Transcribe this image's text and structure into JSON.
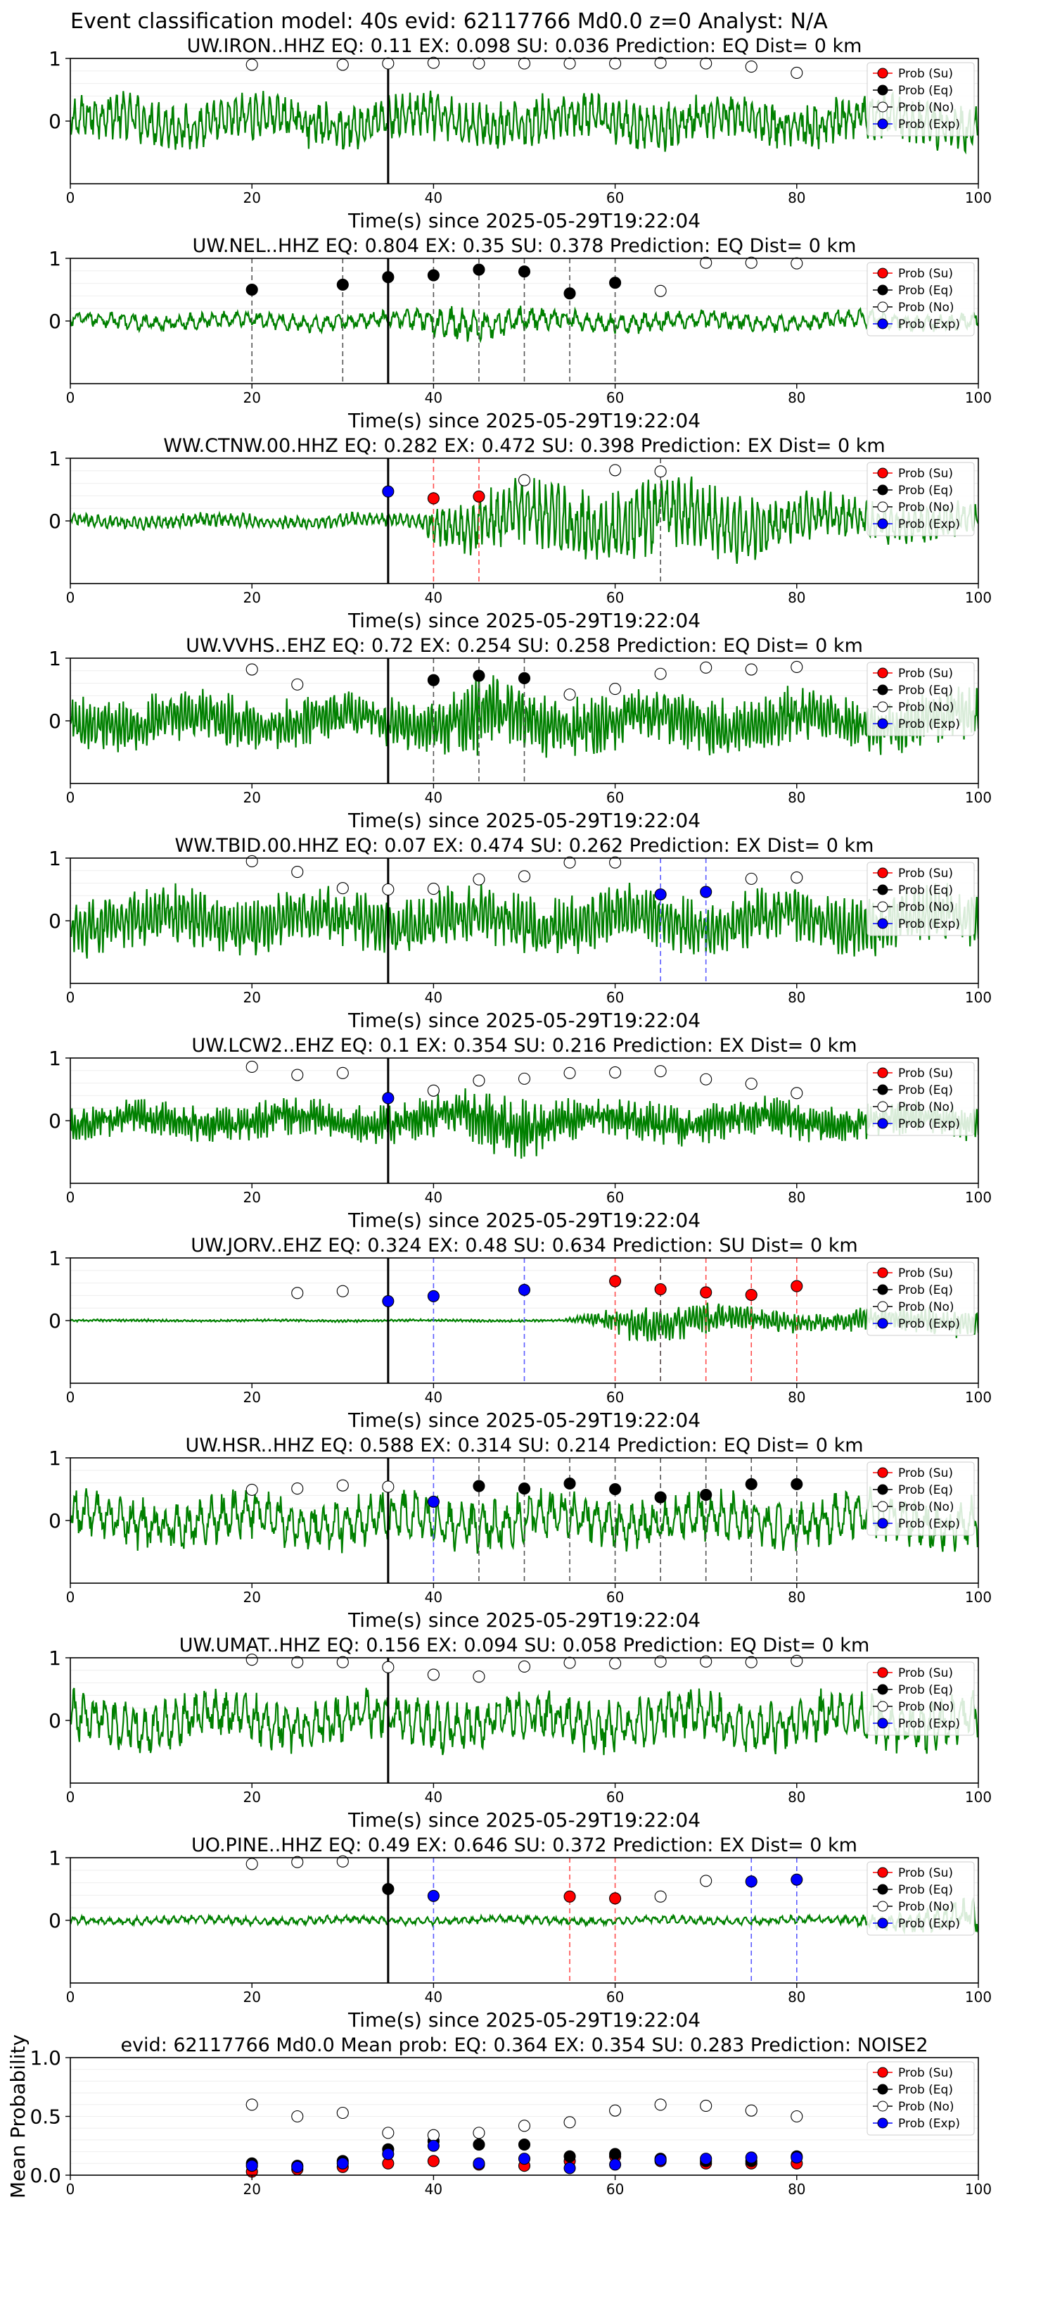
{
  "figure": {
    "suptitle": "Event classification model: 40s evid: 62117766 Md0.0 z=0 Analyst: N/A",
    "xlabel": "Time(s) since 2025-05-29T19:22:04",
    "colors": {
      "waveform": "#008000",
      "su": "#ff0000",
      "eq": "#000000",
      "no": "#ffffff",
      "exp": "#0000ff",
      "pick": "#000000"
    },
    "legend_labels": [
      "Prob (Su)",
      "Prob (Eq)",
      "Prob (No)",
      "Prob (Exp)"
    ],
    "x_ticks": [
      "0",
      "20",
      "40",
      "60",
      "80",
      "100"
    ],
    "y_ticks_station": [
      "1",
      "0"
    ],
    "y_ticks_mean": [
      "0.0",
      "0.5",
      "1.0"
    ],
    "mean_ylabel": "Mean Probability"
  },
  "chart_data": [
    {
      "type": "line",
      "title": "UW.IRON..HHZ   EQ: 0.11  EX: 0.098  SU: 0.036   Prediction: EQ    Dist= 0 km",
      "xlim": [
        0,
        100
      ],
      "ylim": [
        -1,
        1
      ],
      "pick": 35,
      "legend": "right",
      "wave": {
        "amp": 0.42,
        "freq": 1.3,
        "env": [
          [
            0,
            1
          ],
          [
            100,
            1
          ]
        ]
      },
      "su": [],
      "eq": [],
      "exp": [],
      "no": [
        [
          20,
          0.9
        ],
        [
          30,
          0.9
        ],
        [
          35,
          0.92
        ],
        [
          40,
          0.93
        ],
        [
          45,
          0.92
        ],
        [
          50,
          0.92
        ],
        [
          55,
          0.92
        ],
        [
          60,
          0.92
        ],
        [
          65,
          0.93
        ],
        [
          70,
          0.92
        ],
        [
          75,
          0.87
        ],
        [
          80,
          0.77
        ]
      ],
      "vlines": []
    },
    {
      "type": "line",
      "title": "UW.NEL..HHZ   EQ: 0.804  EX: 0.35  SU: 0.378   Prediction: EQ    Dist= 0 km",
      "xlim": [
        0,
        100
      ],
      "ylim": [
        -1,
        1
      ],
      "pick": 35,
      "legend": "right",
      "wave": {
        "amp": 0.15,
        "freq": 0.8,
        "env": [
          [
            0,
            1
          ],
          [
            36,
            1
          ],
          [
            42,
            2.2
          ],
          [
            50,
            1.5
          ],
          [
            60,
            1.2
          ],
          [
            100,
            1
          ]
        ]
      },
      "su": [],
      "eq": [
        [
          20,
          0.5
        ],
        [
          30,
          0.58
        ],
        [
          35,
          0.7
        ],
        [
          40,
          0.73
        ],
        [
          45,
          0.82
        ],
        [
          50,
          0.79
        ],
        [
          55,
          0.44
        ],
        [
          60,
          0.61
        ]
      ],
      "exp": [],
      "no": [
        [
          65,
          0.48
        ],
        [
          70,
          0.93
        ],
        [
          75,
          0.93
        ],
        [
          80,
          0.92
        ]
      ],
      "vlines": [
        [
          20,
          "eq"
        ],
        [
          30,
          "eq"
        ],
        [
          40,
          "eq"
        ],
        [
          45,
          "eq"
        ],
        [
          50,
          "eq"
        ],
        [
          55,
          "eq"
        ],
        [
          60,
          "eq"
        ]
      ]
    },
    {
      "type": "line",
      "title": "WW.CTNW.00.HHZ   EQ: 0.282  EX: 0.472  SU: 0.398   Prediction: EX    Dist= 0 km",
      "xlim": [
        0,
        100
      ],
      "ylim": [
        -1,
        1
      ],
      "pick": 35,
      "legend": "right",
      "wave": {
        "amp": 0.12,
        "freq": 1.5,
        "env": [
          [
            0,
            1
          ],
          [
            38,
            1
          ],
          [
            42,
            4
          ],
          [
            55,
            5.5
          ],
          [
            70,
            5.5
          ],
          [
            85,
            3
          ],
          [
            100,
            2.5
          ]
        ]
      },
      "su": [
        [
          40,
          0.36
        ],
        [
          45,
          0.39
        ]
      ],
      "eq": [],
      "exp": [
        [
          35,
          0.47
        ]
      ],
      "no": [
        [
          50,
          0.65
        ],
        [
          60,
          0.81
        ],
        [
          65,
          0.79
        ]
      ],
      "vlines": [
        [
          40,
          "su"
        ],
        [
          45,
          "su"
        ],
        [
          65,
          "eq"
        ]
      ]
    },
    {
      "type": "line",
      "title": "UW.VVHS..EHZ   EQ: 0.72  EX: 0.254  SU: 0.258   Prediction: EQ    Dist= 0 km",
      "xlim": [
        0,
        100
      ],
      "ylim": [
        -1,
        1
      ],
      "pick": 35,
      "legend": "right",
      "wave": {
        "amp": 0.45,
        "freq": 2.5,
        "env": [
          [
            0,
            1
          ],
          [
            40,
            1
          ],
          [
            45,
            1.6
          ],
          [
            50,
            1.2
          ],
          [
            100,
            1
          ]
        ]
      },
      "su": [],
      "eq": [
        [
          40,
          0.65
        ],
        [
          45,
          0.72
        ],
        [
          50,
          0.68
        ]
      ],
      "exp": [],
      "no": [
        [
          20,
          0.82
        ],
        [
          25,
          0.58
        ],
        [
          55,
          0.42
        ],
        [
          60,
          0.51
        ],
        [
          65,
          0.75
        ],
        [
          70,
          0.85
        ],
        [
          75,
          0.82
        ],
        [
          80,
          0.86
        ]
      ],
      "vlines": [
        [
          40,
          "eq"
        ],
        [
          45,
          "eq"
        ],
        [
          50,
          "eq"
        ]
      ]
    },
    {
      "type": "line",
      "title": "WW.TBID.00.HHZ   EQ: 0.07  EX: 0.474  SU: 0.262   Prediction: EX    Dist= 0 km",
      "xlim": [
        0,
        100
      ],
      "ylim": [
        -1,
        1
      ],
      "pick": 35,
      "legend": "right",
      "wave": {
        "amp": 0.5,
        "freq": 2.2,
        "env": [
          [
            0,
            1
          ],
          [
            100,
            1
          ]
        ]
      },
      "su": [],
      "eq": [],
      "exp": [
        [
          65,
          0.42
        ],
        [
          70,
          0.46
        ]
      ],
      "no": [
        [
          20,
          0.95
        ],
        [
          25,
          0.78
        ],
        [
          30,
          0.52
        ],
        [
          35,
          0.5
        ],
        [
          40,
          0.51
        ],
        [
          45,
          0.66
        ],
        [
          50,
          0.71
        ],
        [
          55,
          0.93
        ],
        [
          60,
          0.93
        ],
        [
          75,
          0.67
        ],
        [
          80,
          0.69
        ]
      ],
      "vlines": [
        [
          65,
          "exp"
        ],
        [
          70,
          "exp"
        ]
      ]
    },
    {
      "type": "line",
      "title": "UW.LCW2..EHZ   EQ: 0.1  EX: 0.354  SU: 0.216   Prediction: EX    Dist= 0 km",
      "xlim": [
        0,
        100
      ],
      "ylim": [
        -1,
        1
      ],
      "pick": 35,
      "legend": "right",
      "wave": {
        "amp": 0.28,
        "freq": 3,
        "env": [
          [
            0,
            1
          ],
          [
            40,
            1.2
          ],
          [
            48,
            2
          ],
          [
            55,
            1.3
          ],
          [
            100,
            1
          ]
        ]
      },
      "su": [],
      "eq": [],
      "exp": [
        [
          35,
          0.36
        ]
      ],
      "no": [
        [
          20,
          0.86
        ],
        [
          25,
          0.73
        ],
        [
          30,
          0.76
        ],
        [
          40,
          0.48
        ],
        [
          45,
          0.64
        ],
        [
          50,
          0.67
        ],
        [
          55,
          0.76
        ],
        [
          60,
          0.77
        ],
        [
          65,
          0.79
        ],
        [
          70,
          0.66
        ],
        [
          75,
          0.59
        ],
        [
          80,
          0.44
        ]
      ],
      "vlines": []
    },
    {
      "type": "line",
      "title": "UW.JORV..EHZ   EQ: 0.324  EX: 0.48  SU: 0.634   Prediction: SU    Dist= 0 km",
      "xlim": [
        0,
        100
      ],
      "ylim": [
        -1,
        1
      ],
      "pick": 35,
      "legend": "right",
      "wave": {
        "amp": 0.02,
        "freq": 2.5,
        "env": [
          [
            0,
            1
          ],
          [
            54,
            1
          ],
          [
            58,
            6
          ],
          [
            62,
            16
          ],
          [
            70,
            13
          ],
          [
            78,
            9
          ],
          [
            90,
            10
          ],
          [
            100,
            12
          ]
        ]
      },
      "su": [
        [
          60,
          0.63
        ],
        [
          65,
          0.5
        ],
        [
          70,
          0.45
        ],
        [
          75,
          0.41
        ],
        [
          80,
          0.55
        ]
      ],
      "eq": [],
      "exp": [
        [
          35,
          0.31
        ],
        [
          40,
          0.39
        ],
        [
          50,
          0.49
        ]
      ],
      "no": [
        [
          25,
          0.44
        ],
        [
          30,
          0.47
        ]
      ],
      "vlines": [
        [
          40,
          "exp"
        ],
        [
          50,
          "exp"
        ],
        [
          60,
          "su"
        ],
        [
          65,
          "su"
        ],
        [
          70,
          "su"
        ],
        [
          75,
          "su"
        ],
        [
          80,
          "su"
        ],
        [
          65,
          "eq"
        ]
      ]
    },
    {
      "type": "line",
      "title": "UW.HSR..HHZ   EQ: 0.588  EX: 0.314  SU: 0.214   Prediction: EQ    Dist= 0 km",
      "xlim": [
        0,
        100
      ],
      "ylim": [
        -1,
        1
      ],
      "pick": 35,
      "legend": "right",
      "wave": {
        "amp": 0.45,
        "freq": 0.8,
        "env": [
          [
            0,
            1
          ],
          [
            100,
            1
          ]
        ]
      },
      "su": [],
      "eq": [
        [
          45,
          0.55
        ],
        [
          50,
          0.51
        ],
        [
          55,
          0.59
        ],
        [
          60,
          0.5
        ],
        [
          65,
          0.37
        ],
        [
          70,
          0.41
        ],
        [
          75,
          0.58
        ],
        [
          80,
          0.58
        ]
      ],
      "exp": [
        [
          40,
          0.3
        ]
      ],
      "no": [
        [
          20,
          0.49
        ],
        [
          25,
          0.51
        ],
        [
          30,
          0.56
        ],
        [
          35,
          0.54
        ]
      ],
      "vlines": [
        [
          40,
          "exp"
        ],
        [
          45,
          "eq"
        ],
        [
          50,
          "eq"
        ],
        [
          55,
          "eq"
        ],
        [
          60,
          "eq"
        ],
        [
          65,
          "eq"
        ],
        [
          70,
          "eq"
        ],
        [
          75,
          "eq"
        ],
        [
          80,
          "eq"
        ]
      ]
    },
    {
      "type": "line",
      "title": "UW.UMAT..HHZ   EQ: 0.156  EX: 0.094  SU: 0.058   Prediction: EQ    Dist= 0 km",
      "xlim": [
        0,
        100
      ],
      "ylim": [
        -1,
        1
      ],
      "pick": 35,
      "legend": "right",
      "wave": {
        "amp": 0.45,
        "freq": 0.9,
        "env": [
          [
            0,
            1
          ],
          [
            100,
            1
          ]
        ]
      },
      "su": [],
      "eq": [],
      "exp": [],
      "no": [
        [
          20,
          0.97
        ],
        [
          25,
          0.93
        ],
        [
          30,
          0.93
        ],
        [
          35,
          0.85
        ],
        [
          40,
          0.73
        ],
        [
          45,
          0.7
        ],
        [
          50,
          0.86
        ],
        [
          55,
          0.92
        ],
        [
          60,
          0.91
        ],
        [
          65,
          0.94
        ],
        [
          70,
          0.94
        ],
        [
          75,
          0.93
        ],
        [
          80,
          0.95
        ]
      ],
      "vlines": []
    },
    {
      "type": "line",
      "title": "UO.PINE..HHZ   EQ: 0.49  EX: 0.646  SU: 0.372   Prediction: EX    Dist= 0 km",
      "xlim": [
        0,
        100
      ],
      "ylim": [
        -1,
        1
      ],
      "pick": 35,
      "legend": "right",
      "wave": {
        "amp": 0.07,
        "freq": 1.0,
        "env": [
          [
            0,
            1
          ],
          [
            85,
            1
          ],
          [
            92,
            2.5
          ],
          [
            100,
            5
          ]
        ]
      },
      "su": [
        [
          55,
          0.38
        ],
        [
          60,
          0.35
        ]
      ],
      "eq": [
        [
          35,
          0.5
        ]
      ],
      "exp": [
        [
          40,
          0.39
        ],
        [
          75,
          0.62
        ],
        [
          80,
          0.65
        ]
      ],
      "no": [
        [
          20,
          0.9
        ],
        [
          25,
          0.93
        ],
        [
          30,
          0.94
        ],
        [
          65,
          0.38
        ],
        [
          70,
          0.63
        ]
      ],
      "vlines": [
        [
          40,
          "exp"
        ],
        [
          55,
          "su"
        ],
        [
          60,
          "su"
        ],
        [
          75,
          "exp"
        ],
        [
          80,
          "exp"
        ]
      ]
    },
    {
      "type": "scatter",
      "title": "evid: 62117766  Md0.0   Mean prob:   EQ: 0.364  EX: 0.354  SU: 0.283   Prediction: NOISE2",
      "xlim": [
        0,
        100
      ],
      "ylim": [
        0,
        1
      ],
      "legend": "right",
      "su": [
        [
          20,
          0.03
        ],
        [
          25,
          0.05
        ],
        [
          30,
          0.07
        ],
        [
          35,
          0.1
        ],
        [
          40,
          0.12
        ],
        [
          45,
          0.09
        ],
        [
          50,
          0.08
        ],
        [
          55,
          0.12
        ],
        [
          60,
          0.16
        ],
        [
          65,
          0.12
        ],
        [
          70,
          0.1
        ],
        [
          75,
          0.1
        ],
        [
          80,
          0.1
        ]
      ],
      "eq": [
        [
          20,
          0.1
        ],
        [
          25,
          0.08
        ],
        [
          30,
          0.12
        ],
        [
          35,
          0.22
        ],
        [
          40,
          0.29
        ],
        [
          45,
          0.26
        ],
        [
          50,
          0.26
        ],
        [
          55,
          0.16
        ],
        [
          60,
          0.18
        ],
        [
          65,
          0.14
        ],
        [
          70,
          0.12
        ],
        [
          75,
          0.12
        ],
        [
          80,
          0.16
        ]
      ],
      "no": [
        [
          20,
          0.6
        ],
        [
          25,
          0.5
        ],
        [
          30,
          0.53
        ],
        [
          35,
          0.36
        ],
        [
          40,
          0.34
        ],
        [
          45,
          0.36
        ],
        [
          50,
          0.42
        ],
        [
          55,
          0.45
        ],
        [
          60,
          0.55
        ],
        [
          65,
          0.6
        ],
        [
          70,
          0.59
        ],
        [
          75,
          0.55
        ],
        [
          80,
          0.5
        ]
      ],
      "exp": [
        [
          20,
          0.08
        ],
        [
          25,
          0.07
        ],
        [
          30,
          0.1
        ],
        [
          35,
          0.18
        ],
        [
          40,
          0.25
        ],
        [
          45,
          0.1
        ],
        [
          50,
          0.14
        ],
        [
          55,
          0.06
        ],
        [
          60,
          0.09
        ],
        [
          65,
          0.13
        ],
        [
          70,
          0.14
        ],
        [
          75,
          0.15
        ],
        [
          80,
          0.15
        ]
      ]
    }
  ]
}
